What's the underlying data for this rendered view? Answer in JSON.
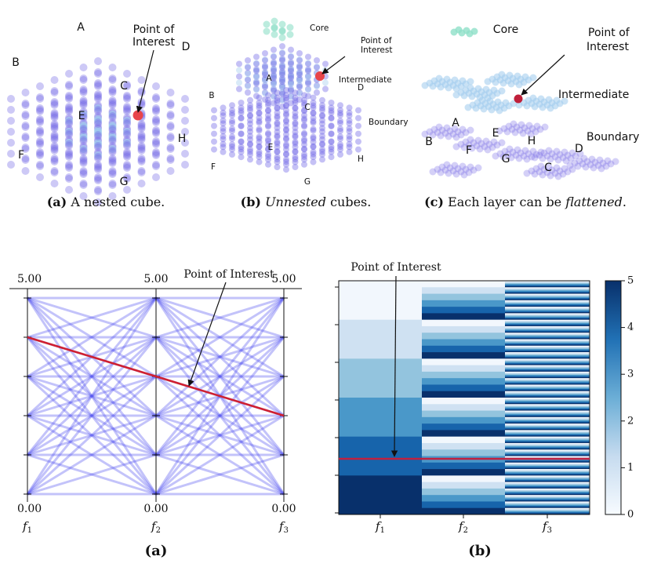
{
  "top_figures": [
    {
      "labels": [
        "A",
        "B",
        "C",
        "D",
        "E",
        "F",
        "G",
        "H",
        "Point of",
        "Interest"
      ],
      "caption": {
        "label": "(a)",
        "text": "A nested cube."
      }
    },
    {
      "labels": [
        "Core",
        "Point of",
        "Interest",
        "Intermediate",
        "A",
        "B",
        "C",
        "D",
        "E",
        "F",
        "G",
        "H",
        "Boundary"
      ],
      "caption": {
        "label": "(b)",
        "emphasis": "Unnested",
        "text": "cubes."
      }
    },
    {
      "labels": [
        "Core",
        "Point of",
        "Interest",
        "Intermediate",
        "A",
        "B",
        "E",
        "F",
        "H",
        "G",
        "Boundary",
        "D",
        "C"
      ],
      "caption": {
        "label": "(c)",
        "text": "Each layer can be",
        "emphasis": "flattened",
        "end": "."
      }
    }
  ],
  "parallel_coordinates": {
    "annotation": "Point of Interest",
    "top_ticks": [
      "5.00",
      "5.00",
      "5.00"
    ],
    "bottom_ticks": [
      "0.00",
      "0.00",
      "0.00"
    ],
    "axes": [
      {
        "base": "f",
        "sub": "1"
      },
      {
        "base": "f",
        "sub": "2"
      },
      {
        "base": "f",
        "sub": "3"
      }
    ],
    "caption": "(a)"
  },
  "heatmap": {
    "annotation": "Point of Interest",
    "axes": [
      {
        "base": "f",
        "sub": "1"
      },
      {
        "base": "f",
        "sub": "2"
      },
      {
        "base": "f",
        "sub": "3"
      }
    ],
    "colorbar_ticks": [
      5,
      4,
      3,
      2,
      1,
      0
    ],
    "caption": "(b)"
  }
}
